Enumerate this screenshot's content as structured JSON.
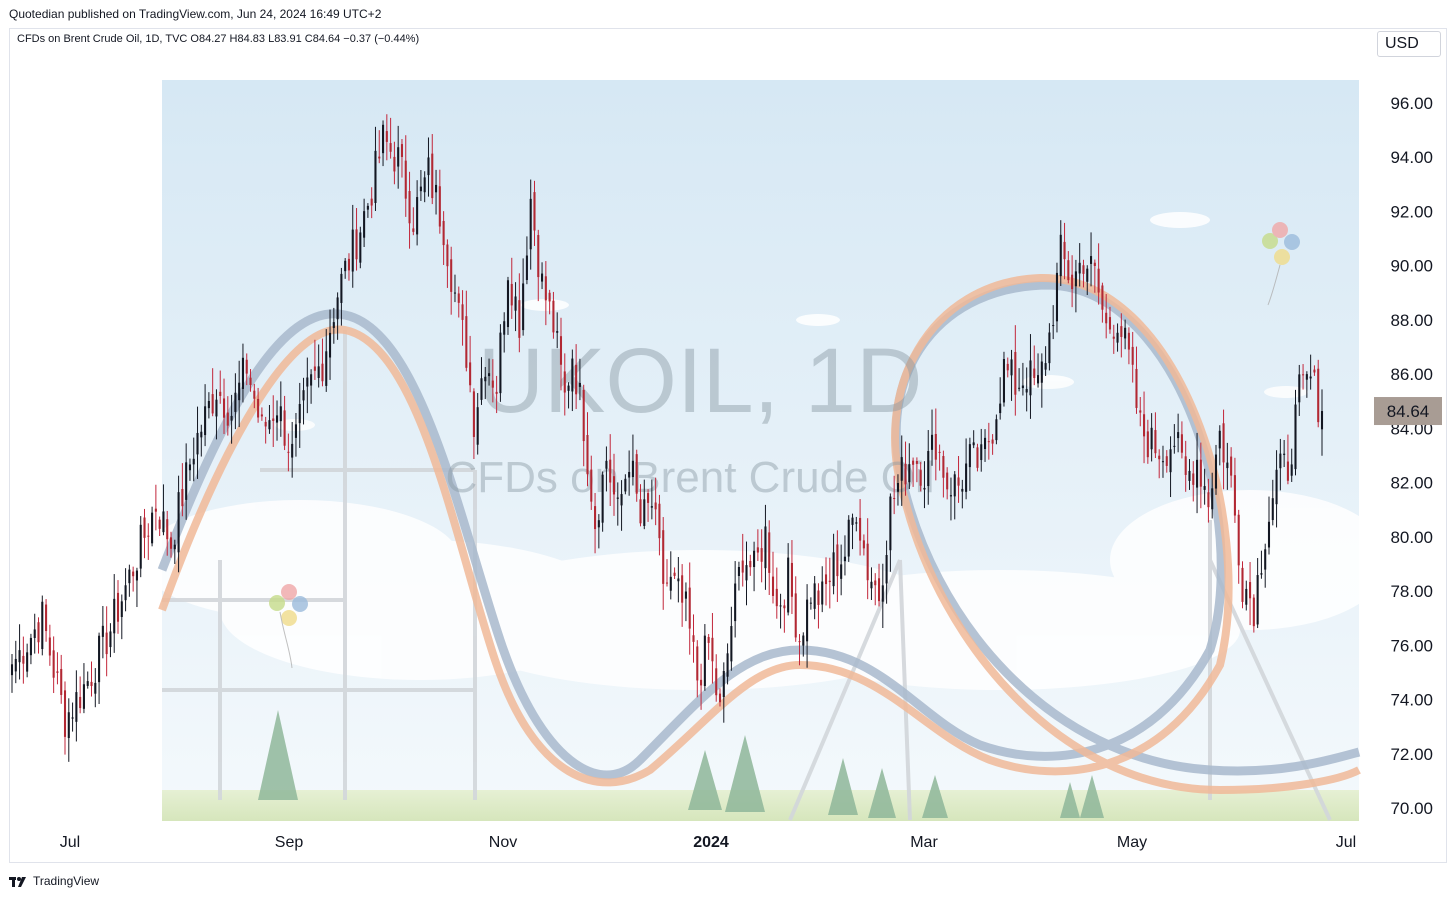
{
  "header": {
    "published_text": "Quotedian published on TradingView.com, Jun 24, 2024 16:49 UTC+2",
    "legend_text": "CFDs on Brent Crude Oil, 1D, TVC  O84.27  H84.83  L83.91  C84.64  −0.37 (−0.44%)",
    "currency": "USD"
  },
  "footer": {
    "brand": "TradingView"
  },
  "watermark": {
    "symbol": "UKOIL, 1D",
    "description": "CFDs on Brent Crude Oil"
  },
  "colors": {
    "up": "#131722",
    "down": "#b22833",
    "wick_up": "#131722",
    "wick_down": "#c2263a",
    "price_label_bg": "#a89c94",
    "sky": "#dcebf5"
  },
  "chart_data": {
    "type": "candlestick",
    "symbol": "UKOIL",
    "interval": "1D",
    "ylim": [
      69,
      97
    ],
    "y_ticks": [
      "96.00",
      "94.00",
      "92.00",
      "90.00",
      "88.00",
      "86.00",
      "84.00",
      "82.00",
      "80.00",
      "78.00",
      "76.00",
      "74.00",
      "72.00",
      "70.00"
    ],
    "x_ticks": [
      {
        "label": "Jul",
        "bold": false
      },
      {
        "label": "Sep",
        "bold": false
      },
      {
        "label": "Nov",
        "bold": false
      },
      {
        "label": "2024",
        "bold": true
      },
      {
        "label": "Mar",
        "bold": false
      },
      {
        "label": "May",
        "bold": false
      },
      {
        "label": "Jul",
        "bold": false
      }
    ],
    "last_price": "84.64",
    "last_close": 84.64,
    "close_path": [
      [
        0,
        75.3
      ],
      [
        8,
        77.0
      ],
      [
        14,
        73.3
      ],
      [
        20,
        74.7
      ],
      [
        26,
        76.6
      ],
      [
        32,
        78.9
      ],
      [
        38,
        81.2
      ],
      [
        42,
        79.8
      ],
      [
        48,
        83.3
      ],
      [
        54,
        85.5
      ],
      [
        58,
        84.6
      ],
      [
        62,
        86.3
      ],
      [
        66,
        83.9
      ],
      [
        70,
        84.9
      ],
      [
        74,
        83.0
      ],
      [
        78,
        85.3
      ],
      [
        82,
        86.5
      ],
      [
        86,
        89.0
      ],
      [
        90,
        90.6
      ],
      [
        94,
        92.3
      ],
      [
        98,
        94.6
      ],
      [
        102,
        93.9
      ],
      [
        106,
        91.8
      ],
      [
        110,
        93.4
      ],
      [
        114,
        91.5
      ],
      [
        118,
        88.1
      ],
      [
        120,
        86.8
      ],
      [
        122,
        84.4
      ],
      [
        125,
        86.6
      ],
      [
        128,
        85.6
      ],
      [
        131,
        90.0
      ],
      [
        134,
        88.0
      ],
      [
        137,
        92.5
      ],
      [
        140,
        89.3
      ],
      [
        143,
        87.8
      ],
      [
        146,
        85.1
      ],
      [
        148,
        86.8
      ],
      [
        151,
        84.2
      ],
      [
        154,
        80.6
      ],
      [
        157,
        82.9
      ],
      [
        160,
        80.8
      ],
      [
        163,
        83.0
      ],
      [
        166,
        80.5
      ],
      [
        169,
        81.2
      ],
      [
        172,
        78.4
      ],
      [
        175,
        78.1
      ],
      [
        178,
        77.2
      ],
      [
        181,
        74.8
      ],
      [
        184,
        76.0
      ],
      [
        187,
        73.5
      ],
      [
        190,
        76.8
      ],
      [
        193,
        79.4
      ],
      [
        196,
        78.7
      ],
      [
        199,
        80.1
      ],
      [
        202,
        77.4
      ],
      [
        205,
        78.5
      ],
      [
        208,
        76.3
      ],
      [
        211,
        78.0
      ],
      [
        214,
        77.7
      ],
      [
        217,
        78.9
      ],
      [
        220,
        79.4
      ],
      [
        223,
        81.2
      ],
      [
        226,
        78.8
      ],
      [
        229,
        77.9
      ],
      [
        232,
        81.1
      ],
      [
        235,
        82.3
      ],
      [
        238,
        83.1
      ],
      [
        241,
        82.4
      ],
      [
        244,
        83.6
      ],
      [
        247,
        82.0
      ],
      [
        250,
        81.9
      ],
      [
        253,
        82.8
      ],
      [
        256,
        82.7
      ],
      [
        259,
        84.1
      ],
      [
        262,
        86.2
      ],
      [
        265,
        85.6
      ],
      [
        268,
        86.0
      ],
      [
        271,
        85.5
      ],
      [
        274,
        87.4
      ],
      [
        277,
        90.4
      ],
      [
        280,
        89.4
      ],
      [
        283,
        90.3
      ],
      [
        286,
        89.6
      ],
      [
        289,
        87.7
      ],
      [
        292,
        88.1
      ],
      [
        295,
        86.5
      ],
      [
        298,
        84.0
      ],
      [
        301,
        83.4
      ],
      [
        304,
        83.2
      ],
      [
        307,
        83.6
      ],
      [
        310,
        82.1
      ],
      [
        313,
        82.9
      ],
      [
        316,
        81.4
      ],
      [
        319,
        83.8
      ],
      [
        322,
        82.0
      ],
      [
        325,
        78.4
      ],
      [
        328,
        77.5
      ],
      [
        331,
        80.2
      ],
      [
        334,
        82.2
      ],
      [
        337,
        82.6
      ],
      [
        340,
        85.2
      ],
      [
        343,
        85.8
      ],
      [
        345,
        85.0
      ],
      [
        346,
        84.64
      ]
    ],
    "annotations": [
      "roller coaster illustration",
      "balloons",
      "pine trees"
    ]
  }
}
